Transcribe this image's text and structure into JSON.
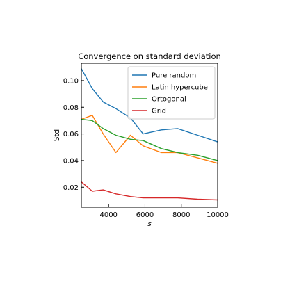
{
  "chart_data": {
    "type": "line",
    "title": "Convergence on standard deviation",
    "xlabel": "s",
    "ylabel": "Std",
    "xlim": [
      2500,
      10000
    ],
    "ylim": [
      0.005,
      0.113
    ],
    "xticks": [
      4000,
      6000,
      8000,
      10000
    ],
    "xtick_labels": [
      "4000",
      "6000",
      "8000",
      "10000"
    ],
    "yticks": [
      0.02,
      0.04,
      0.06,
      0.08,
      0.1
    ],
    "ytick_labels": [
      "0.02",
      "0.04",
      "0.06",
      "0.08",
      "0.10"
    ],
    "grid": false,
    "legend_position": "top-right",
    "series": [
      {
        "name": "Pure random",
        "color": "#1f77b4",
        "x": [
          2500,
          3100,
          3700,
          4400,
          5200,
          5900,
          6900,
          7800,
          8900,
          10000
        ],
        "values": [
          0.109,
          0.094,
          0.084,
          0.079,
          0.072,
          0.06,
          0.063,
          0.064,
          0.059,
          0.054
        ]
      },
      {
        "name": "Latin hypercube",
        "color": "#ff7f0e",
        "x": [
          2500,
          3100,
          3700,
          4400,
          5200,
          5900,
          6900,
          7800,
          8900,
          10000
        ],
        "values": [
          0.071,
          0.074,
          0.06,
          0.046,
          0.059,
          0.051,
          0.046,
          0.046,
          0.042,
          0.038
        ]
      },
      {
        "name": "Ortogonal",
        "color": "#2ca02c",
        "x": [
          2500,
          3100,
          3700,
          4400,
          5200,
          5900,
          6900,
          7800,
          8900,
          10000
        ],
        "values": [
          0.071,
          0.07,
          0.064,
          0.059,
          0.056,
          0.055,
          0.049,
          0.046,
          0.044,
          0.04
        ]
      },
      {
        "name": "Grid",
        "color": "#d62728",
        "x": [
          2500,
          3100,
          3700,
          4400,
          5200,
          5900,
          6900,
          7800,
          8900,
          10000
        ],
        "values": [
          0.024,
          0.017,
          0.018,
          0.015,
          0.013,
          0.012,
          0.012,
          0.012,
          0.011,
          0.0105
        ]
      }
    ]
  }
}
